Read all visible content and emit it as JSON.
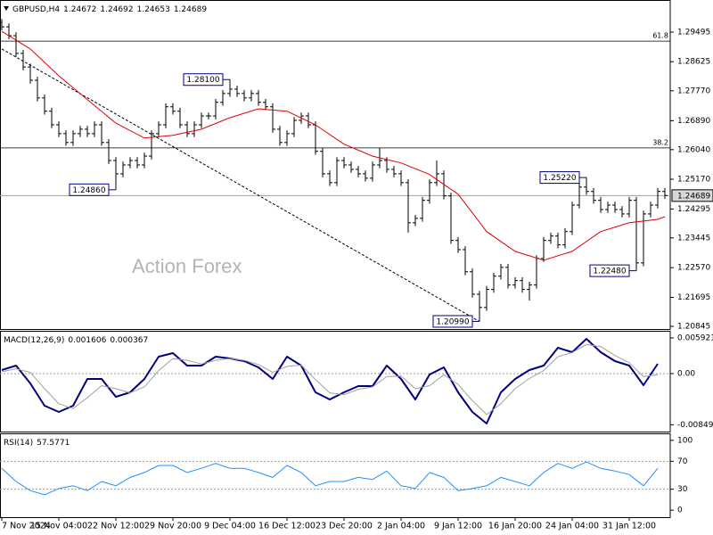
{
  "chart_data": [
    {
      "type": "ohlc",
      "title": "GBPUSD,H4",
      "header_values": [
        1.24672,
        1.24692,
        1.24653,
        1.24689
      ],
      "watermark": "Action Forex",
      "categories": [
        "7 Nov 2024",
        null,
        null,
        null,
        null,
        null,
        null,
        null,
        "15 Nov 04:00",
        null,
        null,
        null,
        null,
        null,
        null,
        null,
        "22 Nov 12:00",
        null,
        null,
        null,
        null,
        null,
        null,
        null,
        "29 Nov 20:00",
        null,
        null,
        null,
        null,
        null,
        null,
        null,
        "9 Dec 04:00",
        null,
        null,
        null,
        null,
        null,
        null,
        null,
        "16 Dec 12:00",
        null,
        null,
        null,
        null,
        null,
        null,
        null,
        "23 Dec 20:00",
        null,
        null,
        null,
        null,
        null,
        null,
        null,
        "2 Jan 04:00",
        null,
        null,
        null,
        null,
        null,
        null,
        null,
        "9 Jan 12:00",
        null,
        null,
        null,
        null,
        null,
        null,
        null,
        "16 Jan 20:00",
        null,
        null,
        null,
        null,
        null,
        null,
        null,
        "24 Jan 04:00",
        null,
        null,
        null,
        null,
        null,
        null,
        null,
        "31 Jan 12:00",
        null,
        null,
        null,
        null,
        null
      ],
      "open": [
        1.2978,
        1.2965,
        1.2939,
        1.2887,
        1.2847,
        1.2808,
        1.2756,
        1.2717,
        1.2677,
        1.2651,
        1.2625,
        1.2651,
        1.2664,
        1.2651,
        1.2677,
        1.2625,
        1.2572,
        1.2533,
        1.2559,
        1.2572,
        1.2559,
        1.2585,
        1.2651,
        1.2677,
        1.273,
        1.2717,
        1.2677,
        1.2651,
        1.2677,
        1.2703,
        1.2703,
        1.2743,
        1.2769,
        1.2782,
        1.2769,
        1.2756,
        1.2769,
        1.2743,
        1.273,
        1.2664,
        1.2625,
        1.2651,
        1.269,
        1.2703,
        1.2677,
        1.2599,
        1.2533,
        1.2507,
        1.2572,
        1.2559,
        1.2546,
        1.2533,
        1.252,
        1.2559,
        1.2572,
        1.2546,
        1.2533,
        1.2507,
        1.2389,
        1.2402,
        1.2455,
        1.2507,
        1.2533,
        1.2468,
        1.2337,
        1.231,
        1.2245,
        1.2179,
        1.214,
        1.2193,
        1.2232,
        1.2258,
        1.2206,
        1.2219,
        1.2193,
        1.2206,
        1.2284,
        1.2337,
        1.235,
        1.2324,
        1.2363,
        1.2441,
        1.2494,
        1.2481,
        1.2455,
        1.2428,
        1.2441,
        1.2428,
        1.2415,
        1.2455,
        1.2271,
        1.2415,
        1.2441,
        1.2481
      ],
      "high": [
        1.2988,
        1.2975,
        1.2949,
        1.2897,
        1.2857,
        1.2818,
        1.2766,
        1.2727,
        1.2687,
        1.2661,
        1.2661,
        1.2674,
        1.2674,
        1.2687,
        1.2687,
        1.2635,
        1.2582,
        1.2569,
        1.2582,
        1.2582,
        1.2595,
        1.2661,
        1.2687,
        1.274,
        1.274,
        1.2727,
        1.2687,
        1.2687,
        1.2713,
        1.2713,
        1.2753,
        1.2779,
        1.281,
        1.2792,
        1.2779,
        1.2779,
        1.2779,
        1.2753,
        1.274,
        1.2674,
        1.2661,
        1.27,
        1.2713,
        1.2713,
        1.2687,
        1.2609,
        1.2543,
        1.2582,
        1.2582,
        1.2569,
        1.2556,
        1.2543,
        1.2569,
        1.2609,
        1.2582,
        1.2556,
        1.2543,
        1.2517,
        1.2412,
        1.2465,
        1.2517,
        1.2572,
        1.2543,
        1.2478,
        1.2347,
        1.232,
        1.2255,
        1.2189,
        1.2203,
        1.2242,
        1.2268,
        1.2268,
        1.2229,
        1.2229,
        1.2216,
        1.2294,
        1.2347,
        1.236,
        1.236,
        1.2373,
        1.2451,
        1.2504,
        1.2522,
        1.2491,
        1.2465,
        1.2451,
        1.2451,
        1.2438,
        1.2465,
        1.2465,
        1.2425,
        1.2451,
        1.2491,
        1.2491
      ],
      "low": [
        1.2955,
        1.2929,
        1.2877,
        1.2837,
        1.2798,
        1.2746,
        1.2707,
        1.2667,
        1.2641,
        1.2615,
        1.2615,
        1.2641,
        1.2641,
        1.2641,
        1.2615,
        1.2562,
        1.2486,
        1.2523,
        1.2549,
        1.2549,
        1.2549,
        1.2575,
        1.2641,
        1.2667,
        1.2707,
        1.2667,
        1.2641,
        1.2641,
        1.2667,
        1.2693,
        1.2693,
        1.2733,
        1.2759,
        1.2759,
        1.2746,
        1.2746,
        1.2733,
        1.272,
        1.2654,
        1.2615,
        1.2615,
        1.2641,
        1.268,
        1.2667,
        1.2589,
        1.2523,
        1.2497,
        1.2497,
        1.2549,
        1.2536,
        1.2523,
        1.251,
        1.251,
        1.2549,
        1.2536,
        1.2523,
        1.2497,
        1.236,
        1.2379,
        1.2392,
        1.2445,
        1.2497,
        1.2458,
        1.2327,
        1.23,
        1.2235,
        1.2169,
        1.2099,
        1.213,
        1.2183,
        1.2222,
        1.2196,
        1.2196,
        1.2183,
        1.216,
        1.2196,
        1.2274,
        1.2327,
        1.2314,
        1.2314,
        1.2353,
        1.2431,
        1.2471,
        1.2445,
        1.2418,
        1.2418,
        1.2418,
        1.2405,
        1.2405,
        1.2248,
        1.2261,
        1.2405,
        1.2431,
        1.2459
      ],
      "close": [
        1.2965,
        1.2939,
        1.2887,
        1.2847,
        1.2808,
        1.2756,
        1.2717,
        1.2677,
        1.2651,
        1.2625,
        1.2651,
        1.2664,
        1.2651,
        1.2677,
        1.2625,
        1.2572,
        1.2533,
        1.2559,
        1.2572,
        1.2559,
        1.2585,
        1.2651,
        1.2677,
        1.273,
        1.2717,
        1.2677,
        1.2651,
        1.2677,
        1.2703,
        1.2703,
        1.2743,
        1.2769,
        1.2782,
        1.2769,
        1.2756,
        1.2769,
        1.2743,
        1.273,
        1.2664,
        1.2625,
        1.2651,
        1.269,
        1.2703,
        1.2677,
        1.2599,
        1.2533,
        1.2507,
        1.2572,
        1.2559,
        1.2546,
        1.2533,
        1.252,
        1.2559,
        1.2572,
        1.2546,
        1.2533,
        1.2507,
        1.2389,
        1.2402,
        1.2455,
        1.2507,
        1.2533,
        1.2468,
        1.2337,
        1.231,
        1.2245,
        1.2179,
        1.214,
        1.2193,
        1.2232,
        1.2258,
        1.2206,
        1.2219,
        1.2193,
        1.2206,
        1.2284,
        1.2337,
        1.235,
        1.2324,
        1.2363,
        1.2441,
        1.2494,
        1.2481,
        1.2455,
        1.2428,
        1.2441,
        1.2428,
        1.2415,
        1.2455,
        1.2271,
        1.2415,
        1.2441,
        1.2481,
        1.2469
      ],
      "color": "#000000",
      "ma": {
        "color": "#e00000",
        "x": [
          0,
          4,
          8,
          12,
          16,
          20,
          24,
          28,
          32,
          36,
          40,
          44,
          48,
          52,
          56,
          60,
          64,
          68,
          72,
          76,
          80,
          84,
          88,
          92,
          93
        ],
        "values": [
          1.2952,
          1.29,
          1.2821,
          1.2751,
          1.2682,
          1.2638,
          1.2646,
          1.2664,
          1.2698,
          1.2724,
          1.2717,
          1.2677,
          1.262,
          1.2585,
          1.2565,
          1.2531,
          1.2473,
          1.2363,
          1.2305,
          1.2279,
          1.2305,
          1.2363,
          1.2389,
          1.2399,
          1.2407
        ]
      },
      "trendline": {
        "x": [
          0,
          67
        ],
        "values": [
          1.29,
          1.2099
        ]
      },
      "fib_levels": [
        {
          "level": 61.8,
          "price": 1.2923
        },
        {
          "level": 38.2,
          "price": 1.2609
        }
      ],
      "annotations": [
        {
          "value": 1.281,
          "label": "1.28100",
          "x": 32
        },
        {
          "value": 1.2486,
          "label": "1.24860",
          "x": 16
        },
        {
          "value": 1.2099,
          "label": "1.20990",
          "x": 67
        },
        {
          "value": 1.2522,
          "label": "1.25220",
          "x": 82
        },
        {
          "value": 1.2248,
          "label": "1.22480",
          "x": 89
        }
      ],
      "last_price": 1.24689,
      "ylim": [
        1.20766,
        1.30439
      ],
      "yticks": [
        1.29495,
        1.28625,
        {
          "value": 1.2777,
          "label": "1.27770"
        },
        {
          "value": 1.2689,
          "label": "1.26890"
        },
        {
          "value": 1.2604,
          "label": "1.26040"
        },
        {
          "value": 1.2517,
          "label": "1.25170"
        },
        1.24295,
        1.23445,
        {
          "value": 1.2257,
          "label": "1.22570"
        },
        1.21695,
        1.20845
      ]
    },
    {
      "type": "line",
      "title": "MACD(12,26,9)",
      "header_values": [
        0.001606,
        0.000367
      ],
      "series": [
        {
          "color": "#00007f",
          "x": [
            0,
            2,
            4,
            6,
            8,
            10,
            12,
            14,
            16,
            18,
            20,
            22,
            24,
            26,
            28,
            30,
            32,
            34,
            36,
            38,
            40,
            42,
            44,
            46,
            48,
            50,
            52,
            54,
            56,
            58,
            60,
            62,
            64,
            66,
            68,
            70,
            72,
            74,
            76,
            78,
            80,
            82,
            84,
            86,
            88,
            90,
            92
          ],
          "values": [
            0.00059,
            0.00133,
            -0.00163,
            -0.00533,
            -0.00636,
            -0.00533,
            -0.00089,
            -0.00089,
            -0.00385,
            -0.00311,
            -0.00089,
            0.00281,
            0.0034,
            0.00133,
            0.00133,
            0.00281,
            0.00252,
            0.00207,
            0.00104,
            -0.00089,
            0.00281,
            0.00133,
            -0.00311,
            -0.00429,
            -0.00311,
            -0.00207,
            -0.00207,
            0.00133,
            -0.00089,
            -0.00429,
            -0.00015,
            0.00104,
            -0.00311,
            -0.00636,
            -0.00829,
            -0.00311,
            -0.00089,
            0.00059,
            0.00133,
            0.00429,
            0.00355,
            0.00577,
            0.00355,
            0.00207,
            0.00133,
            -0.00192,
            0.00163
          ]
        },
        {
          "color": "#a0a0a0",
          "x": [
            0,
            2,
            4,
            6,
            8,
            10,
            12,
            14,
            16,
            18,
            20,
            22,
            24,
            26,
            28,
            30,
            32,
            34,
            36,
            38,
            40,
            42,
            44,
            46,
            48,
            50,
            52,
            54,
            56,
            58,
            60,
            62,
            64,
            66,
            68,
            70,
            72,
            74,
            76,
            78,
            80,
            82,
            84,
            86,
            88,
            90,
            92
          ],
          "values": [
            0.0003,
            0.0008,
            0.0002,
            -0.0025,
            -0.005,
            -0.0058,
            -0.004,
            -0.002,
            -0.0025,
            -0.0032,
            -0.0022,
            0.0005,
            0.0025,
            0.0022,
            0.0016,
            0.0022,
            0.0025,
            0.0022,
            0.0015,
            0.0002,
            0.0012,
            0.0014,
            -0.001,
            -0.0032,
            -0.0035,
            -0.0026,
            -0.0022,
            -0.0005,
            -0.0004,
            -0.0025,
            -0.002,
            -0.0002,
            -0.0018,
            -0.0045,
            -0.0068,
            -0.005,
            -0.0025,
            -0.0008,
            0.0005,
            0.0028,
            0.0035,
            0.0048,
            0.0045,
            0.003,
            0.0018,
            -0.0005,
            -0.0002
          ]
        }
      ],
      "zero_line": true,
      "ylim": [
        -0.00962,
        0.0071
      ],
      "yticks": [
        0.005921,
        {
          "value": 0,
          "label": "0.00"
        },
        -0.00849
      ]
    },
    {
      "type": "line",
      "title": "RSI(14)",
      "header_values": [
        57.5771
      ],
      "series": [
        {
          "color": "#1e90ff",
          "x": [
            0,
            2,
            4,
            6,
            8,
            10,
            12,
            14,
            16,
            18,
            20,
            22,
            24,
            26,
            28,
            30,
            32,
            34,
            36,
            38,
            40,
            42,
            44,
            46,
            48,
            50,
            52,
            54,
            56,
            58,
            60,
            62,
            64,
            66,
            68,
            70,
            72,
            74,
            76,
            78,
            80,
            82,
            84,
            86,
            88,
            90,
            92
          ],
          "values": [
            60,
            41,
            28,
            22,
            31,
            35,
            28,
            41,
            35,
            47,
            54,
            64,
            64,
            54,
            60,
            67,
            60,
            60,
            54,
            47,
            64,
            54,
            35,
            41,
            41,
            47,
            44,
            56,
            35,
            31,
            54,
            47,
            28,
            31,
            35,
            47,
            41,
            35,
            54,
            67,
            60,
            69,
            60,
            56,
            51,
            35,
            60
          ]
        }
      ],
      "levels": [
        70,
        30
      ],
      "ylim": [
        -10,
        110
      ],
      "yticks": [
        100,
        70,
        30,
        0
      ]
    }
  ]
}
